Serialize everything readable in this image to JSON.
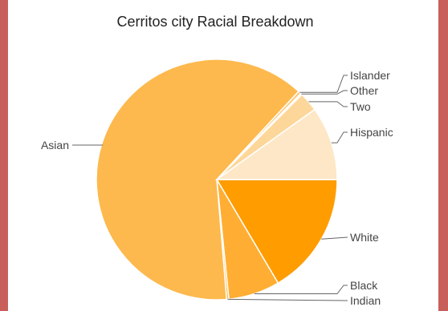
{
  "chart_data": {
    "type": "pie",
    "title": "Cerritos city Racial Breakdown",
    "colors": {
      "Asian": "#fdb94d",
      "White": "#ff9c00",
      "Black": "#ffae33",
      "Indian": "#fdb94d",
      "Hispanic": "#fde7c6",
      "Two": "#fdd79a",
      "Other": "#fde2b7",
      "Islander": "#fdc774",
      "background": "#c95f5a"
    },
    "slices": [
      {
        "label": "White",
        "value": 16.5
      },
      {
        "label": "Black",
        "value": 6.9
      },
      {
        "label": "Indian",
        "value": 0.3
      },
      {
        "label": "Asian",
        "value": 63.2
      },
      {
        "label": "Islander",
        "value": 0.4
      },
      {
        "label": "Other",
        "value": 0.2
      },
      {
        "label": "Two",
        "value": 2.6
      },
      {
        "label": "Hispanic",
        "value": 9.9
      }
    ]
  }
}
